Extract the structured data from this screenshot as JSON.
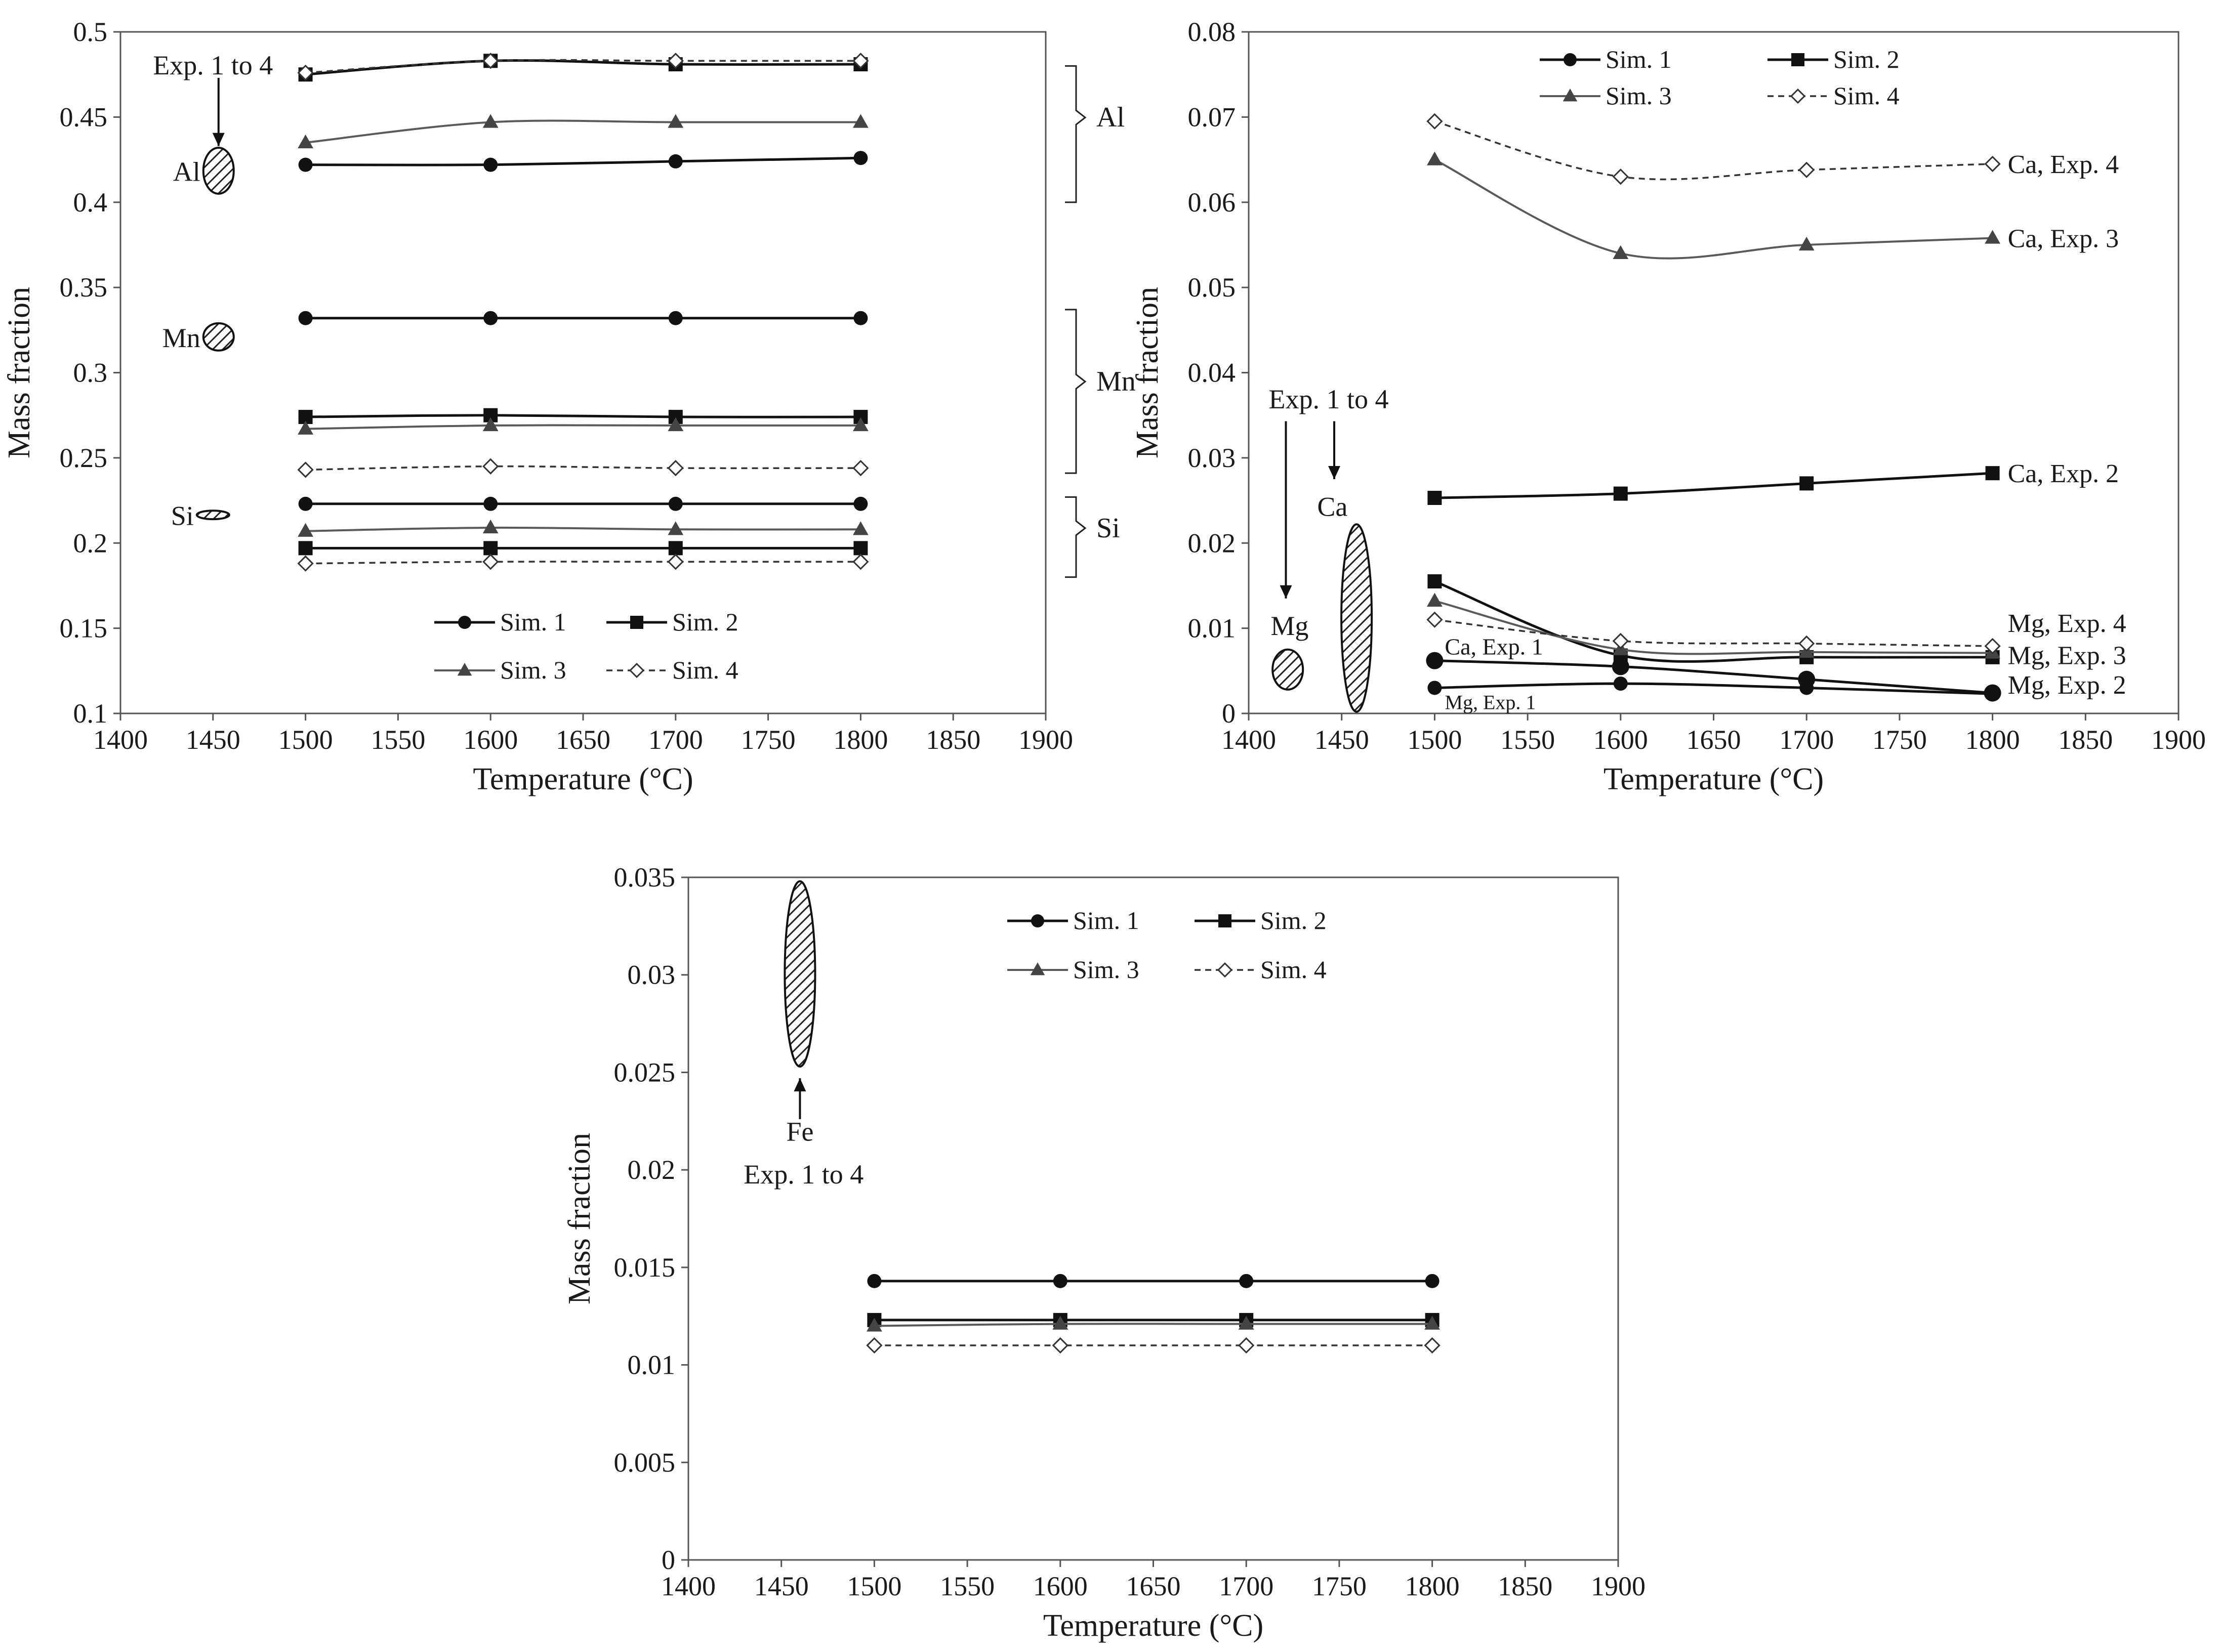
{
  "chart_data": [
    {
      "id": "left",
      "type": "line",
      "title": "",
      "xlabel": "Temperature (°C)",
      "ylabel": "Mass fraction",
      "xlim": [
        1400,
        1900
      ],
      "ylim": [
        0.1,
        0.5
      ],
      "xticks": [
        1400,
        1450,
        1500,
        1550,
        1600,
        1650,
        1700,
        1750,
        1800,
        1850,
        1900
      ],
      "yticks": [
        0.1,
        0.15,
        0.2,
        0.25,
        0.3,
        0.35,
        0.4,
        0.45,
        0.5
      ],
      "ytick_labels": [
        "0.1",
        "0.15",
        "0.2",
        "0.25",
        "0.3",
        "0.35",
        "0.4",
        "0.45",
        "0.5"
      ],
      "grid": false,
      "legend": {
        "placement": "bottom-center",
        "entries": [
          "Sim. 1",
          "Sim. 2",
          "Sim. 3",
          "Sim. 4"
        ]
      },
      "x": [
        1500,
        1600,
        1700,
        1800
      ],
      "series": [
        {
          "name": "Sim. 1",
          "element": "Al",
          "values": [
            0.422,
            0.422,
            0.424,
            0.426
          ]
        },
        {
          "name": "Sim. 2",
          "element": "Al",
          "values": [
            0.475,
            0.483,
            0.481,
            0.481
          ]
        },
        {
          "name": "Sim. 3",
          "element": "Al",
          "values": [
            0.435,
            0.447,
            0.447,
            0.447
          ]
        },
        {
          "name": "Sim. 4",
          "element": "Al",
          "values": [
            0.476,
            0.483,
            0.483,
            0.483
          ]
        },
        {
          "name": "Sim. 1",
          "element": "Mn",
          "values": [
            0.332,
            0.332,
            0.332,
            0.332
          ]
        },
        {
          "name": "Sim. 2",
          "element": "Mn",
          "values": [
            0.274,
            0.275,
            0.274,
            0.274
          ]
        },
        {
          "name": "Sim. 3",
          "element": "Mn",
          "values": [
            0.267,
            0.269,
            0.269,
            0.269
          ]
        },
        {
          "name": "Sim. 4",
          "element": "Mn",
          "values": [
            0.243,
            0.245,
            0.244,
            0.244
          ]
        },
        {
          "name": "Sim. 1",
          "element": "Si",
          "values": [
            0.223,
            0.223,
            0.223,
            0.223
          ]
        },
        {
          "name": "Sim. 2",
          "element": "Si",
          "values": [
            0.197,
            0.197,
            0.197,
            0.197
          ]
        },
        {
          "name": "Sim. 3",
          "element": "Si",
          "values": [
            0.207,
            0.209,
            0.208,
            0.208
          ]
        },
        {
          "name": "Sim. 4",
          "element": "Si",
          "values": [
            0.188,
            0.189,
            0.189,
            0.189
          ]
        }
      ],
      "experimental": [
        {
          "label": "Al",
          "x": 1453,
          "y_low": 0.405,
          "y_high": 0.432
        },
        {
          "label": "Mn",
          "x": 1453,
          "y_low": 0.313,
          "y_high": 0.329
        },
        {
          "label": "Si",
          "x": 1450,
          "y_low": 0.214,
          "y_high": 0.219
        }
      ],
      "annotations": [
        {
          "text": "Exp. 1 to 4",
          "x": 1450,
          "y": 0.475
        },
        {
          "text": "Al",
          "bracket": [
            0.48,
            0.4
          ],
          "label_x": 1853,
          "label_y": 0.445
        },
        {
          "text": "Mn",
          "bracket": [
            0.337,
            0.241
          ],
          "label_x": 1853,
          "label_y": 0.29
        },
        {
          "text": "Si",
          "bracket": [
            0.227,
            0.18
          ],
          "label_x": 1853,
          "label_y": 0.204
        }
      ]
    },
    {
      "id": "right",
      "type": "line",
      "title": "",
      "xlabel": "Temperature (°C)",
      "ylabel": "Mass fraction",
      "xlim": [
        1400,
        1900
      ],
      "ylim": [
        0,
        0.08
      ],
      "xticks": [
        1400,
        1450,
        1500,
        1550,
        1600,
        1650,
        1700,
        1750,
        1800,
        1850,
        1900
      ],
      "yticks": [
        0,
        0.01,
        0.02,
        0.03,
        0.04,
        0.05,
        0.06,
        0.07,
        0.08
      ],
      "ytick_labels": [
        "0",
        "0.01",
        "0.02",
        "0.03",
        "0.04",
        "0.05",
        "0.06",
        "0.07",
        "0.08"
      ],
      "grid": false,
      "legend": {
        "placement": "top-center",
        "entries": [
          "Sim. 1",
          "Sim. 2",
          "Sim. 3",
          "Sim. 4"
        ]
      },
      "x": [
        1500,
        1600,
        1700,
        1800
      ],
      "series": [
        {
          "name": "Sim. 4",
          "element": "Ca",
          "values": [
            0.0695,
            0.063,
            0.0638,
            0.0645
          ],
          "end_label": "Ca, Exp. 4"
        },
        {
          "name": "Sim. 3",
          "element": "Ca",
          "values": [
            0.065,
            0.054,
            0.055,
            0.0558
          ],
          "end_label": "Ca, Exp. 3"
        },
        {
          "name": "Sim. 2",
          "element": "Ca",
          "values": [
            0.0253,
            0.0258,
            0.027,
            0.0282
          ],
          "end_label": "Ca, Exp. 2"
        },
        {
          "name": "Sim. 2",
          "element": "Mg",
          "values": [
            0.0155,
            0.0068,
            0.0066,
            0.0066
          ],
          "end_label": "Mg, Exp. 2"
        },
        {
          "name": "Sim. 3",
          "element": "Mg",
          "values": [
            0.0132,
            0.0075,
            0.0072,
            0.0071
          ],
          "end_label": "Mg, Exp. 3"
        },
        {
          "name": "Sim. 4",
          "element": "Mg",
          "values": [
            0.011,
            0.0085,
            0.0082,
            0.0079
          ],
          "end_label": "Mg, Exp. 4"
        },
        {
          "name": "Sim. 1",
          "element": "Ca",
          "values": [
            0.0062,
            0.0055,
            0.004,
            0.0024
          ],
          "end_label": "Ca, Exp. 1"
        },
        {
          "name": "Sim. 1",
          "element": "Mg",
          "values": [
            0.003,
            0.0035,
            0.003,
            0.0023
          ],
          "end_label": "Mg, Exp. 1"
        }
      ],
      "experimental": [
        {
          "label": "Mg",
          "x": 1421,
          "y_low": 0.0028,
          "y_high": 0.0075
        },
        {
          "label": "Ca",
          "x": 1458,
          "y_low": 0.0002,
          "y_high": 0.0222
        }
      ],
      "annotations": [
        {
          "text": "Exp. 1 to 4",
          "x": 1443,
          "y": 0.0358
        },
        {
          "text": "Ca",
          "x": 1445,
          "y": 0.0232
        },
        {
          "text": "Mg",
          "x": 1422,
          "y": 0.0092
        }
      ]
    },
    {
      "id": "bottom",
      "type": "line",
      "title": "",
      "xlabel": "Temperature (°C)",
      "ylabel": "Mass fraction",
      "xlim": [
        1400,
        1900
      ],
      "ylim": [
        0,
        0.035
      ],
      "xticks": [
        1400,
        1450,
        1500,
        1550,
        1600,
        1650,
        1700,
        1750,
        1800,
        1850,
        1900
      ],
      "yticks": [
        0,
        0.005,
        0.01,
        0.015,
        0.02,
        0.025,
        0.03,
        0.035
      ],
      "ytick_labels": [
        "0",
        "0.005",
        "0.01",
        "0.015",
        "0.02",
        "0.025",
        "0.03",
        "0.035"
      ],
      "grid": false,
      "legend": {
        "placement": "top-center",
        "entries": [
          "Sim. 1",
          "Sim. 2",
          "Sim. 3",
          "Sim. 4"
        ]
      },
      "x": [
        1500,
        1600,
        1700,
        1800
      ],
      "series": [
        {
          "name": "Sim. 1",
          "element": "Fe",
          "values": [
            0.0143,
            0.0143,
            0.0143,
            0.0143
          ]
        },
        {
          "name": "Sim. 2",
          "element": "Fe",
          "values": [
            0.0123,
            0.0123,
            0.0123,
            0.0123
          ]
        },
        {
          "name": "Sim. 3",
          "element": "Fe",
          "values": [
            0.012,
            0.0121,
            0.0121,
            0.0121
          ]
        },
        {
          "name": "Sim. 4",
          "element": "Fe",
          "values": [
            0.011,
            0.011,
            0.011,
            0.011
          ]
        }
      ],
      "experimental": [
        {
          "label": "Fe",
          "x": 1460,
          "y_low": 0.0253,
          "y_high": 0.0348
        }
      ],
      "annotations": [
        {
          "text": "Fe",
          "x": 1460,
          "y": 0.0215
        },
        {
          "text": "Exp. 1 to 4",
          "x": 1462,
          "y": 0.0193
        }
      ]
    }
  ]
}
